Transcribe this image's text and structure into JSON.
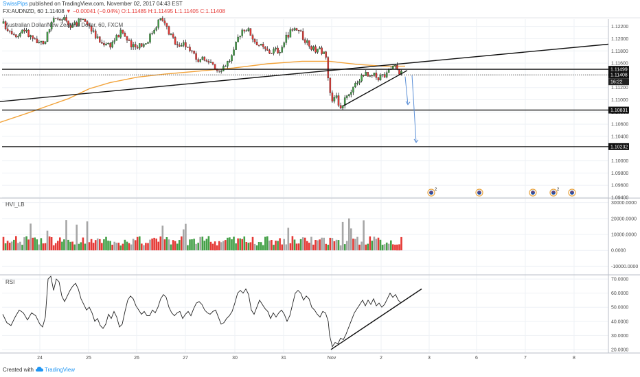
{
  "header": {
    "author": "SwissPips",
    "published": "published on TradingView.com, November 02, 2017 04:43 EST"
  },
  "symbol_line": {
    "symbol": "FX:AUDNZD, 60",
    "last": "1.11408",
    "change": "▼ −0.00041 (−0.04%)",
    "ohlc": "O:1.11485 H:1.11495 L:1.11405 C:1.11408"
  },
  "footer": {
    "created_with": "Created with",
    "brand": "TradingView"
  },
  "colors": {
    "up": "#43a047",
    "down": "#e53935",
    "ma": "#f2a33a",
    "projection": "#5b8fd6",
    "grid": "#eef1f5",
    "axis_text": "#4a4a4a"
  },
  "chart_data": [
    {
      "type": "candlestick",
      "title": "Australian Dollar/New Zealand Dollar, 60, FXCM",
      "ylim": [
        1.094,
        1.1232
      ],
      "x_tick_labels": [
        "24",
        "25",
        "26",
        "27",
        "30",
        "31",
        "Nov",
        "2",
        "3",
        "6",
        "7",
        "8"
      ],
      "y_tick_labels": [
        "1.12200",
        "1.12000",
        "1.11800",
        "1.11600",
        "1.11200",
        "1.11000",
        "1.10800",
        "1.10600",
        "1.10400",
        "1.10000",
        "1.09800",
        "1.09600",
        "1.09400"
      ],
      "price_labels": [
        {
          "value": 1.11499,
          "label": "1.11499"
        },
        {
          "value": 1.11408,
          "label": "1.11408"
        },
        {
          "value": 1.11408,
          "label": "16:22"
        },
        {
          "value": 1.10831,
          "label": "1.10831"
        },
        {
          "value": 1.10232,
          "label": "1.10232"
        }
      ],
      "horizontal_levels": [
        1.11499,
        1.11408,
        1.10831,
        1.10232
      ],
      "moving_average_path": [
        [
          0,
          1.1063
        ],
        [
          40,
          1.1078
        ],
        [
          70,
          1.109
        ],
        [
          100,
          1.1102
        ],
        [
          130,
          1.1118
        ],
        [
          160,
          1.1128
        ],
        [
          200,
          1.1137
        ],
        [
          240,
          1.1142
        ],
        [
          290,
          1.1147
        ],
        [
          340,
          1.1152
        ],
        [
          390,
          1.1159
        ],
        [
          440,
          1.1163
        ],
        [
          480,
          1.1163
        ],
        [
          520,
          1.1158
        ],
        [
          560,
          1.1155
        ],
        [
          590,
          1.1155
        ]
      ],
      "trendlines": [
        {
          "name": "long-trendline",
          "from": [
            0,
            1.1097
          ],
          "to": [
            886,
            1.1191
          ]
        },
        {
          "name": "rising-wedge-support",
          "from": [
            500,
            1.109
          ],
          "to": [
            593,
            1.1148
          ]
        }
      ],
      "projection_arrows": [
        {
          "from": [
            590,
            1.1138
          ],
          "to": [
            594,
            1.1092
          ]
        },
        {
          "from": [
            600,
            1.114
          ],
          "to": [
            606,
            1.103
          ]
        }
      ],
      "event_markers": [
        {
          "x": 628,
          "count": "2"
        },
        {
          "x": 698,
          "count": ""
        },
        {
          "x": 776,
          "count": ""
        },
        {
          "x": 806,
          "count": "2"
        },
        {
          "x": 833,
          "count": ""
        }
      ]
    },
    {
      "type": "bar",
      "title": "HVI_LB",
      "ylim": [
        -15000,
        32000
      ],
      "y_tick_labels": [
        "30000.0000",
        "20000.0000",
        "10000.0000",
        "0.0000",
        "-10000.0000"
      ]
    },
    {
      "type": "line",
      "title": "RSI",
      "ylim": [
        18,
        72
      ],
      "y_tick_labels": [
        "70.0000",
        "60.0000",
        "50.0000",
        "40.0000",
        "30.0000",
        "20.0000"
      ],
      "trendline": {
        "from": [
          482,
          20
        ],
        "to": [
          614,
          63
        ]
      },
      "points": [
        [
          4,
          45
        ],
        [
          10,
          39
        ],
        [
          16,
          37
        ],
        [
          22,
          43
        ],
        [
          28,
          48
        ],
        [
          34,
          46
        ],
        [
          40,
          41
        ],
        [
          46,
          46
        ],
        [
          52,
          44
        ],
        [
          58,
          38
        ],
        [
          62,
          36
        ],
        [
          66,
          43
        ],
        [
          70,
          70
        ],
        [
          74,
          72
        ],
        [
          78,
          62
        ],
        [
          82,
          70
        ],
        [
          86,
          68
        ],
        [
          90,
          58
        ],
        [
          94,
          54
        ],
        [
          98,
          58
        ],
        [
          102,
          62
        ],
        [
          106,
          65
        ],
        [
          110,
          67
        ],
        [
          114,
          63
        ],
        [
          118,
          56
        ],
        [
          122,
          52
        ],
        [
          126,
          48
        ],
        [
          130,
          50
        ],
        [
          134,
          46
        ],
        [
          138,
          40
        ],
        [
          142,
          42
        ],
        [
          146,
          37
        ],
        [
          150,
          35
        ],
        [
          154,
          38
        ],
        [
          158,
          45
        ],
        [
          162,
          42
        ],
        [
          166,
          47
        ],
        [
          170,
          43
        ],
        [
          174,
          36
        ],
        [
          178,
          38
        ],
        [
          182,
          47
        ],
        [
          186,
          55
        ],
        [
          190,
          58
        ],
        [
          194,
          56
        ],
        [
          198,
          51
        ],
        [
          202,
          48
        ],
        [
          206,
          45
        ],
        [
          210,
          47
        ],
        [
          214,
          44
        ],
        [
          218,
          44
        ],
        [
          222,
          48
        ],
        [
          226,
          46
        ],
        [
          230,
          50
        ],
        [
          234,
          56
        ],
        [
          238,
          59
        ],
        [
          242,
          57
        ],
        [
          246,
          50
        ],
        [
          250,
          46
        ],
        [
          254,
          44
        ],
        [
          258,
          46
        ],
        [
          262,
          47
        ],
        [
          266,
          42
        ],
        [
          270,
          45
        ],
        [
          274,
          47
        ],
        [
          278,
          44
        ],
        [
          282,
          49
        ],
        [
          286,
          53
        ],
        [
          290,
          54
        ],
        [
          294,
          52
        ],
        [
          298,
          48
        ],
        [
          302,
          46
        ],
        [
          306,
          45
        ],
        [
          310,
          47
        ],
        [
          314,
          48
        ],
        [
          318,
          43
        ],
        [
          322,
          38
        ],
        [
          326,
          39
        ],
        [
          330,
          42
        ],
        [
          334,
          44
        ],
        [
          338,
          47
        ],
        [
          342,
          53
        ],
        [
          346,
          60
        ],
        [
          350,
          62
        ],
        [
          354,
          60
        ],
        [
          358,
          63
        ],
        [
          362,
          59
        ],
        [
          366,
          48
        ],
        [
          370,
          45
        ],
        [
          374,
          50
        ],
        [
          378,
          55
        ],
        [
          382,
          52
        ],
        [
          386,
          49
        ],
        [
          390,
          47
        ],
        [
          394,
          42
        ],
        [
          398,
          46
        ],
        [
          402,
          43
        ],
        [
          406,
          46
        ],
        [
          410,
          48
        ],
        [
          414,
          45
        ],
        [
          418,
          40
        ],
        [
          422,
          44
        ],
        [
          426,
          52
        ],
        [
          430,
          60
        ],
        [
          434,
          62
        ],
        [
          438,
          60
        ],
        [
          442,
          55
        ],
        [
          446,
          58
        ],
        [
          450,
          56
        ],
        [
          454,
          50
        ],
        [
          458,
          48
        ],
        [
          462,
          45
        ],
        [
          466,
          43
        ],
        [
          470,
          47
        ],
        [
          474,
          46
        ],
        [
          478,
          40
        ],
        [
          480,
          30
        ],
        [
          484,
          22
        ],
        [
          488,
          25
        ],
        [
          492,
          24
        ],
        [
          496,
          28
        ],
        [
          500,
          27
        ],
        [
          504,
          31
        ],
        [
          508,
          36
        ],
        [
          512,
          41
        ],
        [
          516,
          46
        ],
        [
          520,
          49
        ],
        [
          524,
          52
        ],
        [
          528,
          55
        ],
        [
          532,
          51
        ],
        [
          536,
          55
        ],
        [
          540,
          52
        ],
        [
          544,
          56
        ],
        [
          548,
          51
        ],
        [
          552,
          53
        ],
        [
          556,
          50
        ],
        [
          560,
          52
        ],
        [
          564,
          56
        ],
        [
          568,
          60
        ],
        [
          572,
          57
        ],
        [
          576,
          59
        ],
        [
          580,
          55
        ],
        [
          584,
          53
        ]
      ]
    }
  ]
}
